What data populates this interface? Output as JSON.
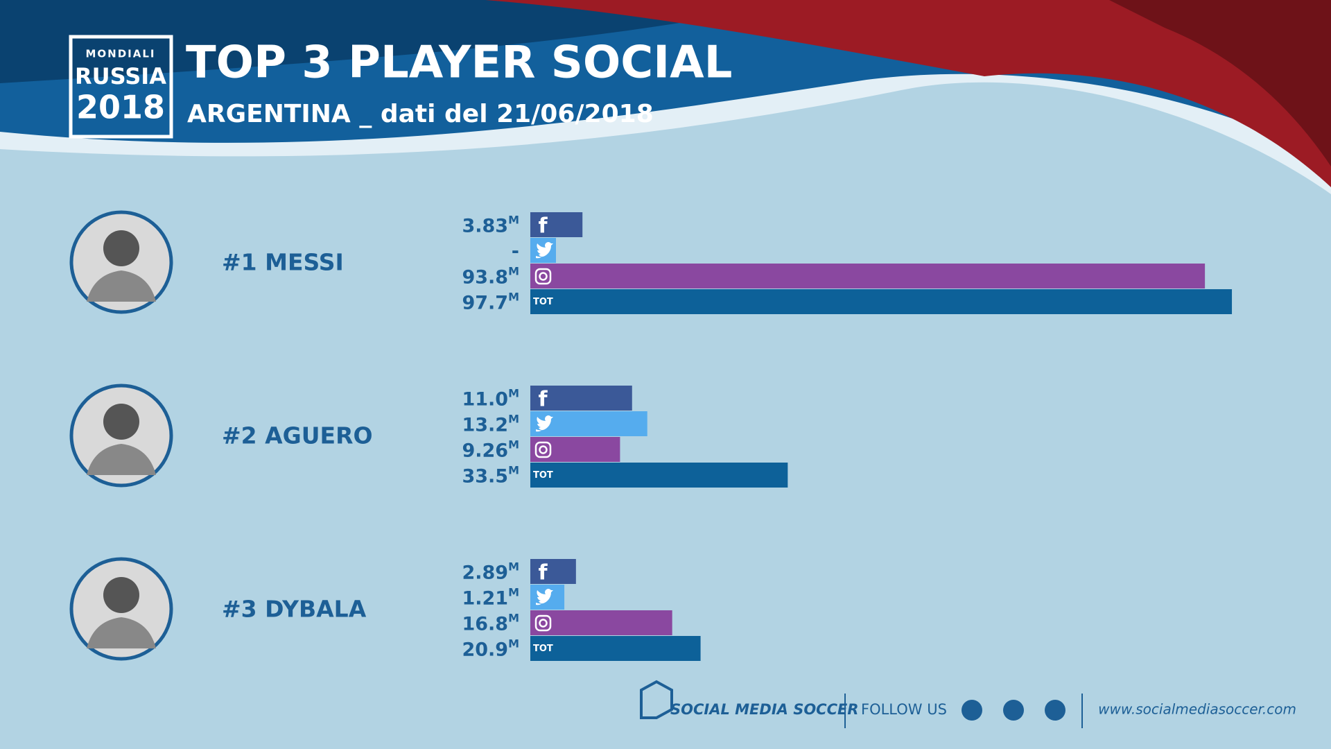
{
  "header": {
    "logo": [
      "MONDIALI",
      "RUSSIA",
      "2018"
    ],
    "title": "TOP 3 PLAYER SOCIAL",
    "subtitle": "ARGENTINA _ dati del 21/06/2018"
  },
  "chart_data": [
    {
      "type": "bar",
      "title": "#1 MESSI",
      "categories": [
        null,
        null,
        null,
        "TOT"
      ],
      "values": [
        3.83,
        null,
        93.8,
        97.7
      ],
      "value_labels": [
        "3.83M",
        "-",
        "93.8M",
        "97.7M"
      ],
      "colors": [
        "#3b5998",
        "#55acee",
        "#8a48a0",
        "#0d6199"
      ]
    },
    {
      "type": "bar",
      "title": "#2 AGUERO",
      "categories": [
        null,
        null,
        null,
        "TOT"
      ],
      "values": [
        11.0,
        13.2,
        9.26,
        33.5
      ],
      "value_labels": [
        "11.0M",
        "13.2M",
        "9.26M",
        "33.5M"
      ],
      "colors": [
        "#3b5998",
        "#55acee",
        "#8a48a0",
        "#0d6199"
      ]
    },
    {
      "type": "bar",
      "title": "#3 DYBALA",
      "categories": [
        null,
        null,
        null,
        "TOT"
      ],
      "values": [
        2.89,
        1.21,
        16.8,
        20.9
      ],
      "value_labels": [
        "2.89M",
        "1.21M",
        "16.8M",
        "20.9M"
      ],
      "colors": [
        "#3b5998",
        "#55acee",
        "#8a48a0",
        "#0d6199"
      ]
    }
  ],
  "footer": {
    "brand": "SOCIAL MEDIA SOCCER",
    "follow": "FOLLOW US",
    "url": "www.socialmediasoccer.com"
  }
}
